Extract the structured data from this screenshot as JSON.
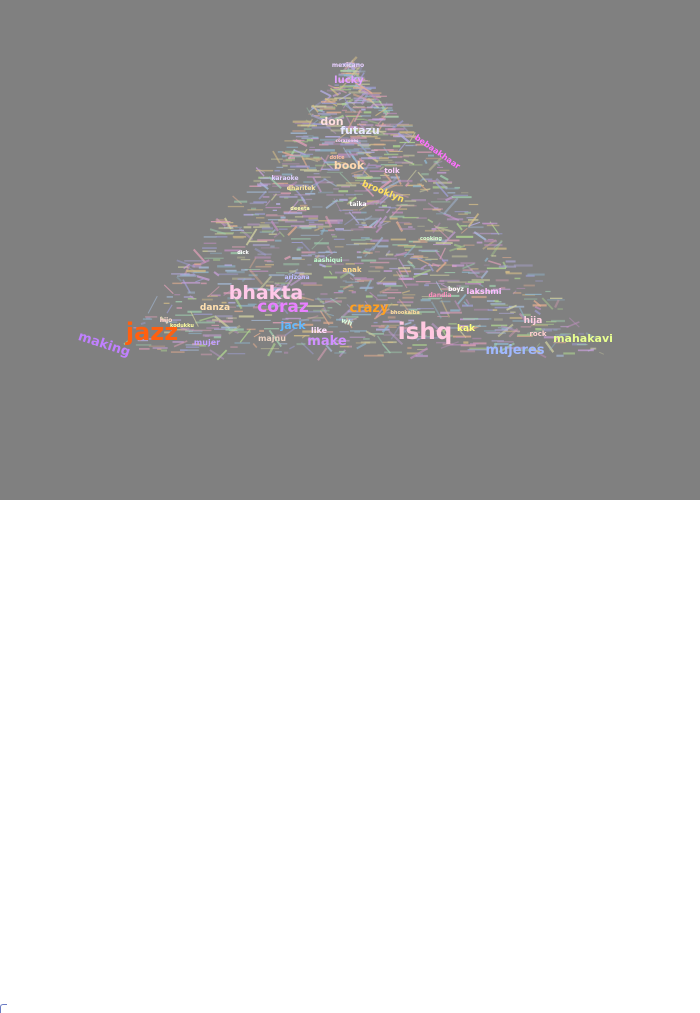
{
  "background_color": "#808080",
  "words": [
    {
      "text": "mexicano",
      "color": "#e8d0ff"
    },
    {
      "text": "lucky",
      "color": "#e0a0ff"
    },
    {
      "text": "don",
      "color": "#ffe0e0"
    },
    {
      "text": "futazu",
      "color": "#e8e8ff"
    },
    {
      "text": "book",
      "color": "#ffd8b0"
    },
    {
      "text": "brooklyn",
      "color": "#ffe060"
    },
    {
      "text": "bhakta",
      "color": "#ffc8e8"
    },
    {
      "text": "coraz",
      "color": "#e880ff"
    },
    {
      "text": "jazz",
      "color": "#ff6010"
    },
    {
      "text": "making",
      "color": "#c080ff"
    },
    {
      "text": "crazy",
      "color": "#ffa020"
    },
    {
      "text": "ishq",
      "color": "#ffc8e0"
    },
    {
      "text": "mujeres",
      "color": "#a0b8ff"
    },
    {
      "text": "mahakavi",
      "color": "#e8ff90"
    },
    {
      "text": "make",
      "color": "#d090ff"
    },
    {
      "text": "jack",
      "color": "#60b8ff"
    },
    {
      "text": "danza",
      "color": "#ffe0b0"
    },
    {
      "text": "hija",
      "color": "#ffd0e0"
    },
    {
      "text": "kak",
      "color": "#ffff80"
    },
    {
      "text": "anak",
      "color": "#ffd890"
    },
    {
      "text": "arizona",
      "color": "#c0c0ff"
    },
    {
      "text": "majnu",
      "color": "#e8d0c0"
    },
    {
      "text": "mujer",
      "color": "#c0a0ff"
    },
    {
      "text": "like",
      "color": "#ffe0ff"
    },
    {
      "text": "boyz",
      "color": "#ffffff"
    },
    {
      "text": "bebaakhaar",
      "color": "#ff70ff"
    },
    {
      "text": "wh",
      "color": "#e0ffe0"
    },
    {
      "text": "aashiqui",
      "color": "#c0ffd0"
    },
    {
      "text": "taika",
      "color": "#ffffff"
    },
    {
      "text": "cooking",
      "color": "#d0ffd0"
    },
    {
      "text": "bhookalba",
      "color": "#ffe0a0"
    },
    {
      "text": "karaoke",
      "color": "#e0d0ff"
    },
    {
      "text": "tolk",
      "color": "#ffd0ff"
    },
    {
      "text": "dharitek",
      "color": "#ffe8a0"
    },
    {
      "text": "kodukku",
      "color": "#ffffa0"
    },
    {
      "text": "rock",
      "color": "#ffd0d0"
    },
    {
      "text": "lakshmi",
      "color": "#ffc0ff"
    },
    {
      "text": "dolce",
      "color": "#ffc0a0"
    },
    {
      "text": "dandia",
      "color": "#ff90c0"
    },
    {
      "text": "deeeta",
      "color": "#ffffb0"
    },
    {
      "text": "corazones",
      "color": "#ffd0ff"
    },
    {
      "text": "hijo",
      "color": "#ffe0d0"
    },
    {
      "text": "dick",
      "color": "#ffffff"
    }
  ],
  "filler_colors": [
    "#c8a0d8",
    "#a8c0e0",
    "#d8c088",
    "#a0d0b0",
    "#e0a0b8",
    "#b8b0e8",
    "#d0d0a0",
    "#90b8d0",
    "#e8b090",
    "#b0d890",
    "#c090c0",
    "#a0a0d8"
  ]
}
